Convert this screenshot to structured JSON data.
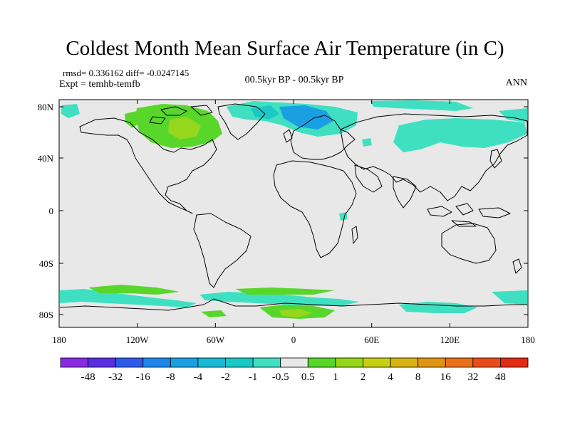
{
  "title": "Coldest Month Mean Surface Air Temperature (in C)",
  "stats": {
    "rmsd_label": "rmsd=",
    "rmsd_value": "0.336162",
    "diff_label": "diff=",
    "diff_value": "-0.0247145"
  },
  "experiment": "Expt = temhb-temfb",
  "period": "00.5kyr BP - 00.5kyr BP",
  "season": "ANN",
  "axes": {
    "x_ticks": [
      "180",
      "120W",
      "60W",
      "0",
      "60E",
      "120E",
      "180"
    ],
    "y_ticks": [
      "80N",
      "40N",
      "0",
      "40S",
      "80S"
    ]
  },
  "colorbar": {
    "labels": [
      "-48",
      "-32",
      "-16",
      "-8",
      "-4",
      "-2",
      "-1",
      "-0.5",
      "0.5",
      "1",
      "2",
      "4",
      "8",
      "16",
      "32",
      "48"
    ],
    "colors": [
      "#8a2be2",
      "#5a2ee0",
      "#2d5be8",
      "#1f86e8",
      "#1aa0e2",
      "#19b8d6",
      "#1ac9c6",
      "#3fe0c2",
      "#e8e8e8",
      "#58d62a",
      "#96d61c",
      "#c6cf15",
      "#d8b412",
      "#e09412",
      "#e8701a",
      "#ea4b1a",
      "#e02a14"
    ]
  },
  "palette": {
    "ocean": "#e8e8e8",
    "coast": "#000000",
    "anom_cyan": "#3fe0c2",
    "anom_teal": "#1ac9c6",
    "anom_blue": "#1aa0e2",
    "anom_green": "#58d62a",
    "anom_lime": "#96d61c"
  }
}
